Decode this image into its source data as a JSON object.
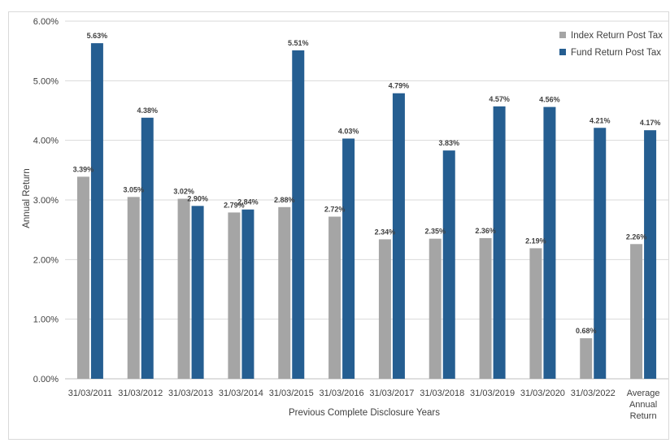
{
  "chart_data": {
    "type": "bar",
    "title": "",
    "xlabel": "Previous Complete Disclosure Years",
    "ylabel": "Annual Return",
    "ylim": [
      0,
      6
    ],
    "yticks": [
      "0.00%",
      "1.00%",
      "2.00%",
      "3.00%",
      "4.00%",
      "5.00%",
      "6.00%"
    ],
    "grid": true,
    "legend_position": "top-right",
    "categories": [
      [
        "31/03/2011"
      ],
      [
        "31/03/2012"
      ],
      [
        "31/03/2013"
      ],
      [
        "31/03/2014"
      ],
      [
        "31/03/2015"
      ],
      [
        "31/03/2016"
      ],
      [
        "31/03/2017"
      ],
      [
        "31/03/2018"
      ],
      [
        "31/03/2019"
      ],
      [
        "31/03/2020"
      ],
      [
        "31/03/2022"
      ],
      [
        "Average",
        "Annual",
        "Return"
      ]
    ],
    "series": [
      {
        "name": "Index Return Post Tax",
        "color": "#a5a5a5",
        "values": [
          3.39,
          3.05,
          3.02,
          2.79,
          2.88,
          2.72,
          2.34,
          2.35,
          2.36,
          2.19,
          0.68,
          2.26
        ],
        "labels": [
          "3.39%",
          "3.05%",
          "3.02%",
          "2.79%",
          "2.88%",
          "2.72%",
          "2.34%",
          "2.35%",
          "2.36%",
          "2.19%",
          "0.68%",
          "2.26%"
        ]
      },
      {
        "name": "Fund Return Post Tax",
        "color": "#255e91",
        "values": [
          5.63,
          4.38,
          2.9,
          2.84,
          5.51,
          4.03,
          4.79,
          3.83,
          4.57,
          4.56,
          4.21,
          4.17
        ],
        "labels": [
          "5.63%",
          "4.38%",
          "2.90%",
          "2.84%",
          "5.51%",
          "4.03%",
          "4.79%",
          "3.83%",
          "4.57%",
          "4.56%",
          "4.21%",
          "4.17%"
        ]
      }
    ]
  }
}
